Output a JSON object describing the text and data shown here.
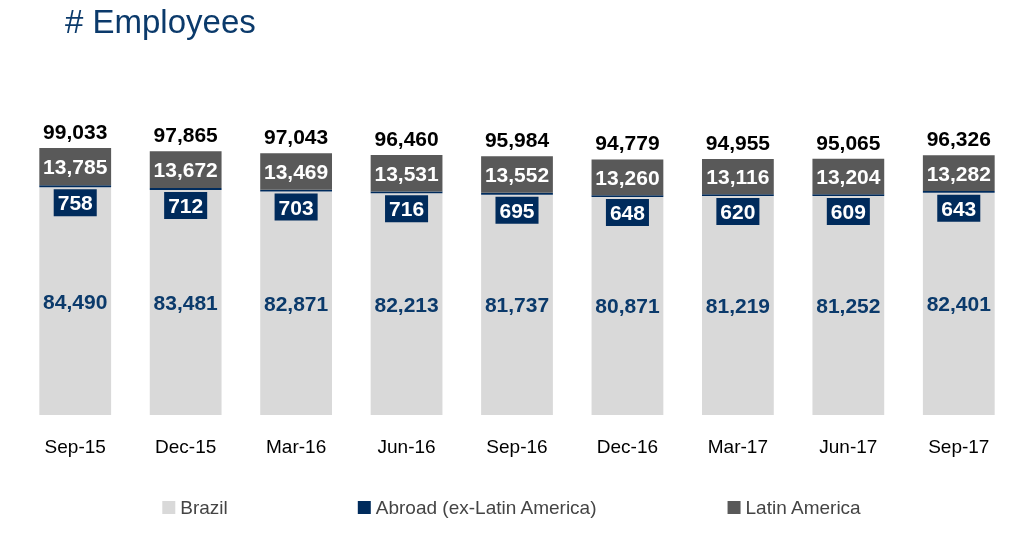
{
  "chart_data": {
    "type": "bar",
    "title": "# Employees",
    "stacked": true,
    "legend": "bottom",
    "categories": [
      "Sep-15",
      "Dec-15",
      "Mar-16",
      "Jun-16",
      "Sep-16",
      "Dec-16",
      "Mar-17",
      "Jun-17",
      "Sep-17"
    ],
    "series": [
      {
        "name": "Brazil",
        "color": "#d9d9d9",
        "values": [
          84490,
          83481,
          82871,
          82213,
          81737,
          80871,
          81219,
          81252,
          82401
        ],
        "value_labels": [
          "84,490",
          "83,481",
          "82,871",
          "82,213",
          "81,737",
          "80,871",
          "81,219",
          "81,252",
          "82,401"
        ]
      },
      {
        "name": "Abroad (ex-Latin America)",
        "color": "#002b5c",
        "values": [
          758,
          712,
          703,
          716,
          695,
          648,
          620,
          609,
          643
        ],
        "value_labels": [
          "758",
          "712",
          "703",
          "716",
          "695",
          "648",
          "620",
          "609",
          "643"
        ]
      },
      {
        "name": "Latin America",
        "color": "#595959",
        "values": [
          13785,
          13672,
          13469,
          13531,
          13552,
          13260,
          13116,
          13204,
          13282
        ],
        "value_labels": [
          "13,785",
          "13,672",
          "13,469",
          "13,531",
          "13,552",
          "13,260",
          "13,116",
          "13,204",
          "13,282"
        ]
      }
    ],
    "totals": [
      "99,033",
      "97,865",
      "97,043",
      "96,460",
      "95,984",
      "94,779",
      "94,955",
      "95,065",
      "96,326"
    ]
  }
}
